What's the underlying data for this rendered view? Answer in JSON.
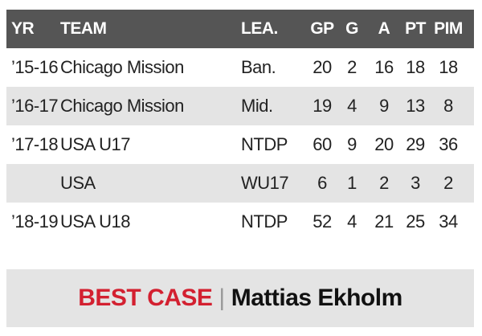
{
  "table": {
    "header": [
      "YR",
      "TEAM",
      "LEA.",
      "GP",
      "G",
      "A",
      "PT",
      "PIM"
    ],
    "rows": [
      {
        "yr": "’15-16",
        "team": "Chicago Mission",
        "league": "Ban.",
        "gp": 20,
        "g": 2,
        "a": 16,
        "pt": 18,
        "pim": 18
      },
      {
        "yr": "’16-17",
        "team": "Chicago Mission",
        "league": "Mid.",
        "gp": 19,
        "g": 4,
        "a": 9,
        "pt": 13,
        "pim": 8
      },
      {
        "yr": "’17-18",
        "team": "USA U17",
        "league": "NTDP",
        "gp": 60,
        "g": 9,
        "a": 20,
        "pt": 29,
        "pim": 36
      },
      {
        "team": "USA",
        "league": "WU17",
        "gp": 6,
        "g": 1,
        "a": 2,
        "pt": 3,
        "pim": 2
      },
      {
        "yr": "’18-19",
        "team": "USA U18",
        "league": "NTDP",
        "gp": 52,
        "g": 4,
        "a": 21,
        "pt": 25,
        "pim": 34
      }
    ]
  },
  "footer": {
    "label": "BEST CASE",
    "separator": "|",
    "name": "Mattias Ekholm"
  }
}
